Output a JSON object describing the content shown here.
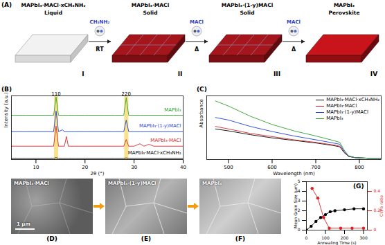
{
  "figure": {
    "A": {
      "label": "(A)",
      "stages": [
        {
          "formula": "MAPbI₃·MACl·xCH₃NH₂",
          "state": "Liquid",
          "numeral": "I"
        },
        {
          "formula": "MAPbI₃·MACl",
          "state": "Solid",
          "numeral": "II"
        },
        {
          "formula": "MAPbI₃·(1-y)MACl",
          "state": "Solid",
          "numeral": "III"
        },
        {
          "formula": "MAPbI₃",
          "state": "Perovskite",
          "numeral": "IV"
        }
      ],
      "steps": [
        {
          "molecule": "CH₃NH₂",
          "condition": "RT"
        },
        {
          "molecule": "MACl",
          "condition": "Δ"
        },
        {
          "molecule": "MACl",
          "condition": "Δ"
        }
      ]
    },
    "images": [
      {
        "label": "(D)",
        "caption": "MAPbI₃·MACl",
        "scale_bar": "1 μm"
      },
      {
        "label": "(E)",
        "caption": "MAPbI₃·(1-y)MACl"
      },
      {
        "label": "(F)",
        "caption": "MAPbI₃"
      }
    ]
  },
  "chart_data": [
    {
      "type": "line",
      "title": "(B)",
      "x_label": "2θ (°)",
      "y_label": "Intensity (a.u.)",
      "xlim": [
        5,
        40
      ],
      "xticks": [
        10,
        20,
        30,
        40
      ],
      "ylim": [
        0,
        105
      ],
      "tick_labels": "x",
      "peaks": [
        {
          "label": "110",
          "x": 14.1
        },
        {
          "label": "220",
          "x": 28.4
        }
      ],
      "x": [
        5,
        8,
        11,
        13.6,
        14.1,
        14.6,
        15.4,
        15.8,
        16.2,
        16.6,
        18,
        20,
        22,
        24,
        26,
        27.9,
        28.4,
        28.9,
        30,
        31.2,
        32,
        33,
        34,
        36,
        38,
        40
      ],
      "series": [
        {
          "name": "MAPbI₃",
          "color": "#2ca02c",
          "values": [
            73,
            73,
            73,
            73,
            103,
            73,
            73,
            73,
            73,
            73,
            73,
            73,
            73,
            73,
            73,
            73,
            102,
            73,
            73,
            73,
            73,
            73,
            73,
            73,
            73,
            73
          ]
        },
        {
          "name": "MAPbI₃·(1-y)MACl",
          "color": "#1f3fd6",
          "values": [
            46,
            46,
            46,
            46,
            80,
            46,
            49,
            46,
            46,
            46,
            46,
            46,
            46,
            46,
            46,
            46,
            65,
            46,
            46,
            46,
            46,
            46,
            46,
            46,
            46,
            46
          ]
        },
        {
          "name": "MAPbI₃·MACl",
          "color": "#d62728",
          "values": [
            22,
            22,
            22,
            22,
            55,
            22,
            22,
            22,
            38,
            22,
            22,
            22,
            22,
            22,
            22,
            22,
            33,
            22,
            22,
            26,
            22,
            25,
            22,
            22,
            22,
            22
          ]
        },
        {
          "name": "MAPbI₃·MACl·xCH₃NH₂",
          "color": "#000000",
          "values": [
            2,
            2,
            2,
            2,
            3,
            2,
            2,
            2,
            2,
            2,
            2,
            2,
            2,
            2,
            2,
            2,
            2.6,
            2,
            2,
            2,
            2,
            2,
            2,
            2,
            2,
            2
          ]
        }
      ]
    },
    {
      "type": "line",
      "title": "(C)",
      "x_label": "Wavelength (nm)",
      "y_label": "Absorbance",
      "xlim": [
        450,
        850
      ],
      "xticks": [
        500,
        600,
        700,
        800
      ],
      "ylim": [
        0,
        1
      ],
      "tick_labels": "x",
      "legend": "top-right",
      "x": [
        470,
        500,
        550,
        600,
        650,
        700,
        740,
        755,
        765,
        775,
        790,
        820,
        850
      ],
      "series": [
        {
          "name": "MAPbI₃·MACl·xCH₃NH₂",
          "color": "#000000",
          "values": [
            0.48,
            0.45,
            0.39,
            0.34,
            0.3,
            0.26,
            0.22,
            0.2,
            0.11,
            0.05,
            0.03,
            0.02,
            0.02
          ]
        },
        {
          "name": "MAPbI₃·MACl",
          "color": "#d62728",
          "values": [
            0.52,
            0.48,
            0.41,
            0.36,
            0.31,
            0.27,
            0.23,
            0.21,
            0.12,
            0.05,
            0.03,
            0.02,
            0.02
          ]
        },
        {
          "name": "MAPbI₃·(1-y)MACl",
          "color": "#1f3fd6",
          "values": [
            0.66,
            0.62,
            0.52,
            0.44,
            0.37,
            0.31,
            0.26,
            0.24,
            0.13,
            0.05,
            0.03,
            0.02,
            0.02
          ]
        },
        {
          "name": "MAPbI₃",
          "color": "#2ca02c",
          "values": [
            0.92,
            0.84,
            0.68,
            0.55,
            0.45,
            0.37,
            0.3,
            0.27,
            0.15,
            0.06,
            0.03,
            0.02,
            0.02
          ]
        }
      ]
    },
    {
      "type": "scatter",
      "title": "(G)",
      "x_label": "Annealing Time (s)",
      "y_label": "Mean Grain Size (μm)",
      "y2_label": "Cl/Pb ratio",
      "xlim": [
        0,
        320
      ],
      "xticks": [
        0,
        100,
        200,
        300
      ],
      "ylim": [
        0,
        5
      ],
      "yticks": [
        0,
        1,
        2,
        3,
        4,
        5
      ],
      "y2lim": [
        0,
        0.5
      ],
      "y2ticks": [
        0,
        0.2,
        0.4
      ],
      "series": [
        {
          "color": "#000000",
          "marker": "circle",
          "line_style": "solid",
          "x": [
            0,
            25,
            50,
            75,
            100,
            125,
            150,
            200,
            250,
            300
          ],
          "values": [
            0,
            0.4,
            0.9,
            1.3,
            1.6,
            1.9,
            2.0,
            2.1,
            2.2,
            2.2
          ]
        },
        {
          "color": "#e02020",
          "marker": "circle",
          "line_style": "solid",
          "axis": "y2",
          "x": [
            30,
            60,
            90,
            120,
            180,
            240,
            300
          ],
          "values": [
            0.43,
            0.33,
            0.13,
            0.02,
            0.02,
            0.02,
            0.02
          ]
        }
      ]
    }
  ]
}
